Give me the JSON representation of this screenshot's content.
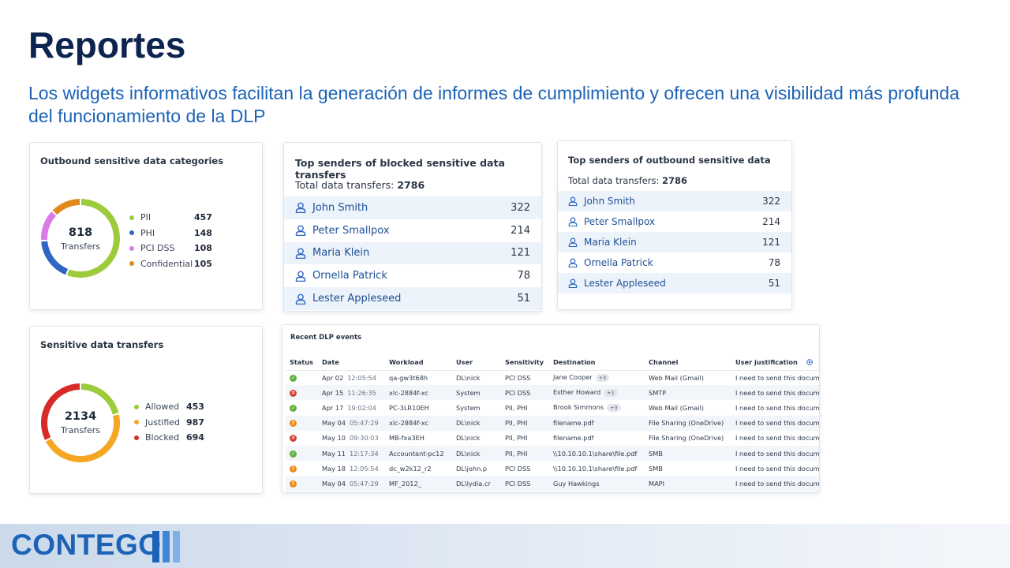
{
  "slide": {
    "title": "Reportes",
    "subtitle": "Los widgets informativos facilitan la generación de informes de cumplimiento y ofrecen una visibilidad más profunda del funcionamiento de la DLP"
  },
  "outbound_categories": {
    "title": "Outbound sensitive data categories",
    "total": "818",
    "total_label": "Transfers",
    "items": [
      {
        "name": "PII",
        "value": 457,
        "color": "#9ccc3c"
      },
      {
        "name": "PHI",
        "value": 148,
        "color": "#2f66c4"
      },
      {
        "name": "PCI DSS",
        "value": 108,
        "color": "#d97ae6"
      },
      {
        "name": "Confidential",
        "value": 105,
        "color": "#e0891d"
      }
    ]
  },
  "blocked_senders": {
    "title": "Top senders of blocked sensitive data transfers",
    "total_prefix": "Total data transfers: ",
    "total": "2786",
    "rows": [
      {
        "name": "John Smith",
        "count": "322"
      },
      {
        "name": "Peter Smallpox",
        "count": "214"
      },
      {
        "name": "Maria Klein",
        "count": "121"
      },
      {
        "name": "Ornella Patrick",
        "count": "78"
      },
      {
        "name": "Lester Appleseed",
        "count": "51"
      }
    ]
  },
  "outbound_senders": {
    "title": "Top senders of outbound sensitive data",
    "total_prefix": "Total data transfers: ",
    "total": "2786",
    "rows": [
      {
        "name": "John Smith",
        "count": "322"
      },
      {
        "name": "Peter Smallpox",
        "count": "214"
      },
      {
        "name": "Maria Klein",
        "count": "121"
      },
      {
        "name": "Ornella Patrick",
        "count": "78"
      },
      {
        "name": "Lester Appleseed",
        "count": "51"
      }
    ]
  },
  "sensitive_transfers": {
    "title": "Sensitive data transfers",
    "total": "2134",
    "total_label": "Transfers",
    "items": [
      {
        "name": "Allowed",
        "value": 453,
        "color": "#9ccc3c"
      },
      {
        "name": "Justified",
        "value": 987,
        "color": "#f5a623"
      },
      {
        "name": "Blocked",
        "value": 694,
        "color": "#d62b27"
      }
    ]
  },
  "recent_events": {
    "title": "Recent DLP events",
    "columns": [
      "Status",
      "Date",
      "Workload",
      "User",
      "Sensitivity",
      "Destination",
      "Channel",
      "User justification"
    ],
    "rows": [
      {
        "status": "allowed",
        "date": "Apr 02",
        "time": "12:05:54",
        "workload": "qa-gw3t68h",
        "user": "DL\\nick",
        "sensitivity": "PCI DSS",
        "destination": "Jane Cooper",
        "badge": "+3",
        "channel": "Web Mail (Gmail)",
        "justification": "I need to send this docum..."
      },
      {
        "status": "blocked",
        "date": "Apr 15",
        "time": "11:26:35",
        "workload": "xlc-2884f-xc",
        "user": "System",
        "sensitivity": "PCI DSS",
        "destination": "Esther Howard",
        "badge": "+1",
        "channel": "SMTP",
        "justification": "I need to send this docum..."
      },
      {
        "status": "allowed",
        "date": "Apr 17",
        "time": "19:02:04",
        "workload": "PC-3LR10EH",
        "user": "System",
        "sensitivity": "PII, PHI",
        "destination": "Brook Simmons",
        "badge": "+3",
        "channel": "Web Mail (Gmail)",
        "justification": "I need to send this docum..."
      },
      {
        "status": "justified",
        "date": "May 04",
        "time": "05:47:29",
        "workload": "xlc-2884f-xc",
        "user": "DL\\nick",
        "sensitivity": "PII, PHI",
        "destination": "filename.pdf",
        "badge": "",
        "channel": "File Sharing (OneDrive)",
        "justification": "I need to send this docum..."
      },
      {
        "status": "blocked",
        "date": "May 10",
        "time": "09:30:03",
        "workload": "MB-fxa3EH",
        "user": "DL\\nick",
        "sensitivity": "PII, PHI",
        "destination": "filename.pdf",
        "badge": "",
        "channel": "File Sharing (OneDrive)",
        "justification": "I need to send this docum..."
      },
      {
        "status": "allowed",
        "date": "May 11",
        "time": "12:17:34",
        "workload": "Accountant-pc12",
        "user": "DL\\nick",
        "sensitivity": "PII, PHI",
        "destination": "\\\\10.10.10.1\\share\\file.pdf",
        "badge": "",
        "channel": "SMB",
        "justification": "I need to send this docum..."
      },
      {
        "status": "justified",
        "date": "May 18",
        "time": "12:05:54",
        "workload": "dc_w2k12_r2",
        "user": "DL\\john.p",
        "sensitivity": "PCI DSS",
        "destination": "\\\\10.10.10.1\\share\\file.pdf",
        "badge": "",
        "channel": "SMB",
        "justification": "I need to send this docum..."
      },
      {
        "status": "justified",
        "date": "May 04",
        "time": "05:47:29",
        "workload": "MF_2012_",
        "user": "DL\\lydia.cr",
        "sensitivity": "PCI DSS",
        "destination": "Guy Hawkings",
        "badge": "",
        "channel": "MAPI",
        "justification": "I need to send this docum..."
      }
    ]
  },
  "footer": {
    "logo_text": "CONTEGO",
    "brand_color": "#1c63b7"
  }
}
